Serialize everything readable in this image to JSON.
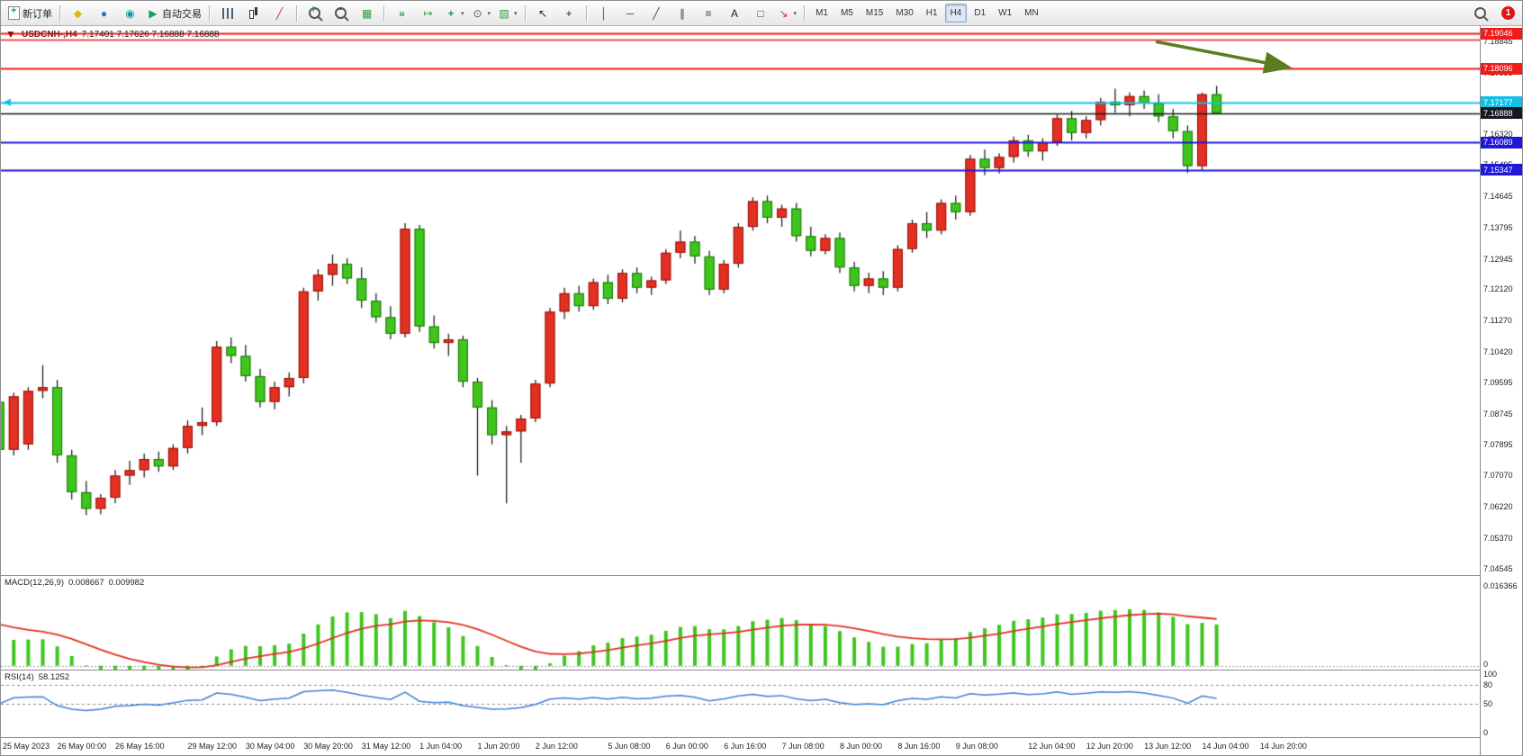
{
  "toolbar": {
    "groups": [
      {
        "buttons": [
          {
            "name": "new-order-button",
            "icon": "new-order-icon",
            "label": "新订单"
          }
        ]
      },
      {
        "buttons": [
          {
            "name": "metaeditor-button",
            "icon": "metaeditor-icon"
          },
          {
            "name": "community-button",
            "icon": "user-icon"
          },
          {
            "name": "market-button",
            "icon": "market-icon"
          },
          {
            "name": "autotrading-button",
            "icon": "autotrading-play-icon",
            "label": "自动交易"
          }
        ]
      },
      {
        "buttons": [
          {
            "name": "bar-chart-button",
            "icon": "bar-chart-icon"
          },
          {
            "name": "candlestick-chart-button",
            "icon": "candlestick-chart-icon"
          },
          {
            "name": "line-chart-button",
            "icon": "line-chart-icon"
          }
        ]
      },
      {
        "buttons": [
          {
            "name": "zoom-in-button",
            "icon": "zoom-in-icon"
          },
          {
            "name": "zoom-out-button",
            "icon": "zoom-out-icon"
          },
          {
            "name": "tile-windows-button",
            "icon": "tile-windows-icon"
          }
        ]
      },
      {
        "buttons": [
          {
            "name": "auto-scroll-button",
            "icon": "auto-scroll-icon"
          },
          {
            "name": "chart-shift-button",
            "icon": "chart-shift-icon"
          },
          {
            "name": "indicators-button",
            "icon": "indicators-icon",
            "caret": true
          },
          {
            "name": "periods-button",
            "icon": "clock-icon",
            "caret": true
          },
          {
            "name": "templates-button",
            "icon": "templates-icon",
            "caret": true
          }
        ]
      },
      {
        "buttons": [
          {
            "name": "cursor-button",
            "icon": "cursor-icon"
          },
          {
            "name": "crosshair-button",
            "icon": "crosshair-icon"
          }
        ]
      },
      {
        "buttons": [
          {
            "name": "vertical-line-button",
            "icon": "vertical-line-icon"
          },
          {
            "name": "horizontal-line-button",
            "icon": "horizontal-line-icon"
          },
          {
            "name": "trendline-button",
            "icon": "trendline-icon"
          },
          {
            "name": "channel-button",
            "icon": "channel-icon"
          },
          {
            "name": "fibonacci-button",
            "icon": "fibonacci-icon"
          },
          {
            "name": "text-button",
            "icon": "text-icon"
          },
          {
            "name": "label-button",
            "icon": "label-icon"
          },
          {
            "name": "arrow-tool-button",
            "icon": "arrow-tool-icon",
            "caret": true
          }
        ]
      }
    ],
    "timeframes": {
      "options": [
        "M1",
        "M5",
        "M15",
        "M30",
        "H1",
        "H4",
        "D1",
        "W1",
        "MN"
      ],
      "active": "H4"
    },
    "right": {
      "notification_count": "1"
    }
  },
  "chart": {
    "collapse_icon": "down-triangle-icon",
    "title": "USDCNH-,H4",
    "ohlc_text": "7.17401 7.17626 7.16888 7.16888"
  },
  "chart_data": {
    "type": "candlestick",
    "symbol": "USDCNH-",
    "timeframe": "H4",
    "current_bar": {
      "open": 7.17401,
      "high": 7.17626,
      "low": 7.16888,
      "close": 7.16888
    },
    "ylim": [
      7.0435,
      7.1925
    ],
    "grid": false,
    "price_axis_labels": [
      "7.18845",
      "7.17995",
      "7.17170",
      "7.16320",
      "7.15495",
      "7.14645",
      "7.13795",
      "7.12945",
      "7.12120",
      "7.11270",
      "7.10420",
      "7.09595",
      "7.08745",
      "7.07895",
      "7.07070",
      "7.06220",
      "7.05370",
      "7.04545"
    ],
    "price_badges": [
      {
        "value": "7.19046",
        "color": "#ef1c1c"
      },
      {
        "value": "7.18096",
        "color": "#ef1c1c"
      },
      {
        "value": "7.17177",
        "color": "#12c0e8"
      },
      {
        "value": "7.16888",
        "color": "#14181f"
      },
      {
        "value": "7.16089",
        "color": "#2018d8"
      },
      {
        "value": "7.15347",
        "color": "#2018d8"
      }
    ],
    "hlines": [
      {
        "price": 7.19046,
        "color": "#ef1c1c",
        "width": 2
      },
      {
        "price": 7.1889,
        "color": "#ef1c1c",
        "width": 1.4
      },
      {
        "price": 7.18096,
        "color": "#ef1c1c",
        "width": 2
      },
      {
        "price": 7.17177,
        "color": "#12c0e8",
        "width": 2
      },
      {
        "price": 7.16888,
        "color": "#14181f",
        "width": 1.5
      },
      {
        "price": 7.16089,
        "color": "#2018d8",
        "width": 2
      },
      {
        "price": 7.15347,
        "color": "#2018d8",
        "width": 2
      }
    ],
    "colors": {
      "up": "#e33022",
      "up_edge": "#941109",
      "down": "#3ec61d",
      "down_edge": "#1d7207",
      "wick": "#111111"
    },
    "candles": [
      [
        7.076,
        7.091,
        7.0745,
        7.0895
      ],
      [
        7.0895,
        7.094,
        7.086,
        7.0905
      ],
      [
        7.0905,
        7.093,
        7.076,
        7.0775
      ],
      [
        7.0775,
        7.093,
        7.076,
        7.092
      ],
      [
        7.079,
        7.0945,
        7.0775,
        7.0935
      ],
      [
        7.0935,
        7.1005,
        7.0915,
        7.0945
      ],
      [
        7.0945,
        7.0965,
        7.074,
        7.076
      ],
      [
        7.076,
        7.0775,
        7.064,
        7.066
      ],
      [
        7.066,
        7.069,
        7.0598,
        7.0615
      ],
      [
        7.0615,
        7.0655,
        7.06,
        7.0645
      ],
      [
        7.0645,
        7.072,
        7.063,
        7.0705
      ],
      [
        7.0705,
        7.0745,
        7.068,
        7.072
      ],
      [
        7.072,
        7.0765,
        7.07,
        7.075
      ],
      [
        7.075,
        7.077,
        7.0715,
        7.073
      ],
      [
        7.073,
        7.079,
        7.072,
        7.078
      ],
      [
        7.078,
        7.0855,
        7.0765,
        7.084
      ],
      [
        7.084,
        7.089,
        7.0815,
        7.085
      ],
      [
        7.085,
        7.107,
        7.084,
        7.1055
      ],
      [
        7.1055,
        7.108,
        7.101,
        7.103
      ],
      [
        7.103,
        7.106,
        7.096,
        7.0975
      ],
      [
        7.0975,
        7.0995,
        7.089,
        7.0905
      ],
      [
        7.0905,
        7.096,
        7.0885,
        7.0945
      ],
      [
        7.0945,
        7.0985,
        7.092,
        7.097
      ],
      [
        7.097,
        7.1215,
        7.0955,
        7.1205
      ],
      [
        7.1205,
        7.1265,
        7.118,
        7.125
      ],
      [
        7.125,
        7.1305,
        7.122,
        7.128
      ],
      [
        7.128,
        7.1295,
        7.1225,
        7.124
      ],
      [
        7.124,
        7.127,
        7.116,
        7.118
      ],
      [
        7.118,
        7.12,
        7.112,
        7.1135
      ],
      [
        7.1135,
        7.1165,
        7.1075,
        7.109
      ],
      [
        7.109,
        7.139,
        7.108,
        7.1375
      ],
      [
        7.1375,
        7.1385,
        7.1095,
        7.111
      ],
      [
        7.111,
        7.114,
        7.105,
        7.1065
      ],
      [
        7.1065,
        7.109,
        7.103,
        7.1075
      ],
      [
        7.1075,
        7.1085,
        7.0945,
        7.096
      ],
      [
        7.096,
        7.097,
        7.0705,
        7.089
      ],
      [
        7.089,
        7.091,
        7.079,
        7.0815
      ],
      [
        7.0815,
        7.084,
        7.063,
        7.0825
      ],
      [
        7.0825,
        7.087,
        7.074,
        7.086
      ],
      [
        7.086,
        7.0965,
        7.085,
        7.0955
      ],
      [
        7.0955,
        7.116,
        7.0945,
        7.115
      ],
      [
        7.115,
        7.1215,
        7.113,
        7.12
      ],
      [
        7.12,
        7.122,
        7.115,
        7.1165
      ],
      [
        7.1165,
        7.124,
        7.1155,
        7.123
      ],
      [
        7.123,
        7.125,
        7.117,
        7.1185
      ],
      [
        7.1185,
        7.1265,
        7.1175,
        7.1255
      ],
      [
        7.1255,
        7.127,
        7.12,
        7.1215
      ],
      [
        7.1215,
        7.1245,
        7.1195,
        7.1235
      ],
      [
        7.1235,
        7.132,
        7.1225,
        7.131
      ],
      [
        7.131,
        7.137,
        7.1295,
        7.134
      ],
      [
        7.134,
        7.1355,
        7.128,
        7.13
      ],
      [
        7.13,
        7.1315,
        7.1195,
        7.121
      ],
      [
        7.121,
        7.129,
        7.12,
        7.128
      ],
      [
        7.128,
        7.139,
        7.127,
        7.138
      ],
      [
        7.138,
        7.146,
        7.137,
        7.145
      ],
      [
        7.145,
        7.1465,
        7.139,
        7.1405
      ],
      [
        7.1405,
        7.144,
        7.138,
        7.143
      ],
      [
        7.143,
        7.1445,
        7.134,
        7.1355
      ],
      [
        7.1355,
        7.138,
        7.13,
        7.1315
      ],
      [
        7.1315,
        7.136,
        7.1305,
        7.135
      ],
      [
        7.135,
        7.1365,
        7.1255,
        7.127
      ],
      [
        7.127,
        7.1285,
        7.1205,
        7.122
      ],
      [
        7.122,
        7.1255,
        7.12,
        7.124
      ],
      [
        7.124,
        7.126,
        7.1195,
        7.1215
      ],
      [
        7.1215,
        7.133,
        7.1205,
        7.132
      ],
      [
        7.132,
        7.14,
        7.131,
        7.139
      ],
      [
        7.139,
        7.142,
        7.135,
        7.137
      ],
      [
        7.137,
        7.1455,
        7.136,
        7.1445
      ],
      [
        7.1445,
        7.1465,
        7.14,
        7.142
      ],
      [
        7.142,
        7.1575,
        7.141,
        7.1565
      ],
      [
        7.1565,
        7.159,
        7.152,
        7.154
      ],
      [
        7.154,
        7.158,
        7.1525,
        7.157
      ],
      [
        7.157,
        7.1625,
        7.1555,
        7.1615
      ],
      [
        7.1615,
        7.163,
        7.157,
        7.1585
      ],
      [
        7.1585,
        7.162,
        7.156,
        7.161
      ],
      [
        7.161,
        7.1685,
        7.16,
        7.1675
      ],
      [
        7.1675,
        7.1695,
        7.1615,
        7.1635
      ],
      [
        7.1635,
        7.168,
        7.162,
        7.167
      ],
      [
        7.167,
        7.173,
        7.1655,
        7.172
      ],
      [
        7.172,
        7.1755,
        7.169,
        7.171
      ],
      [
        7.171,
        7.1745,
        7.168,
        7.1735
      ],
      [
        7.1735,
        7.175,
        7.17,
        7.1715
      ],
      [
        7.1715,
        7.174,
        7.1665,
        7.168
      ],
      [
        7.168,
        7.17,
        7.162,
        7.164
      ],
      [
        7.164,
        7.1655,
        7.1527,
        7.1545
      ],
      [
        7.1545,
        7.1745,
        7.1535,
        7.174
      ],
      [
        7.17401,
        7.17626,
        7.16888,
        7.16888
      ]
    ],
    "x_ticks": [
      {
        "i": 0,
        "label": "25 May 2023"
      },
      {
        "i": 6,
        "label": "26 May 00:00"
      },
      {
        "i": 10,
        "label": "26 May 16:00"
      },
      {
        "i": 15,
        "label": "29 May 12:00"
      },
      {
        "i": 19,
        "label": "30 May 04:00"
      },
      {
        "i": 23,
        "label": "30 May 20:00"
      },
      {
        "i": 27,
        "label": "31 May 12:00"
      },
      {
        "i": 31,
        "label": "1 Jun 04:00"
      },
      {
        "i": 35,
        "label": "1 Jun 20:00"
      },
      {
        "i": 39,
        "label": "2 Jun 12:00"
      },
      {
        "i": 44,
        "label": "5 Jun 08:00"
      },
      {
        "i": 48,
        "label": "6 Jun 00:00"
      },
      {
        "i": 52,
        "label": "6 Jun 16:00"
      },
      {
        "i": 56,
        "label": "7 Jun 08:00"
      },
      {
        "i": 60,
        "label": "8 Jun 00:00"
      },
      {
        "i": 64,
        "label": "8 Jun 16:00"
      },
      {
        "i": 68,
        "label": "9 Jun 08:00"
      },
      {
        "i": 73,
        "label": "12 Jun 04:00"
      },
      {
        "i": 77,
        "label": "12 Jun 20:00"
      },
      {
        "i": 81,
        "label": "13 Jun 12:00"
      },
      {
        "i": 85,
        "label": "14 Jun 04:00"
      },
      {
        "i": 89,
        "label": "14 Jun 20:00"
      }
    ],
    "annotations": [
      {
        "type": "arrow",
        "color": "#5c7d1f",
        "tip_price": 7.18096,
        "tip_x": 1428,
        "tail_dx": -145,
        "tail_dy": -28,
        "width": 3.5
      }
    ],
    "indicators": [
      {
        "name": "MACD",
        "label": "MACD(12,26,9)",
        "value_main": "0.008667",
        "value_signal": "0.009982",
        "axis_labels": [
          "0.016366",
          "0"
        ],
        "hist_color": "#3ec61d",
        "signal_color": "#e33022"
      },
      {
        "name": "RSI",
        "label": "RSI(14)",
        "value": "58.1252",
        "axis_labels": [
          "100",
          "80",
          "50",
          "0"
        ],
        "levels": [
          80,
          50
        ],
        "line_color": "#3e7fd4"
      }
    ]
  }
}
